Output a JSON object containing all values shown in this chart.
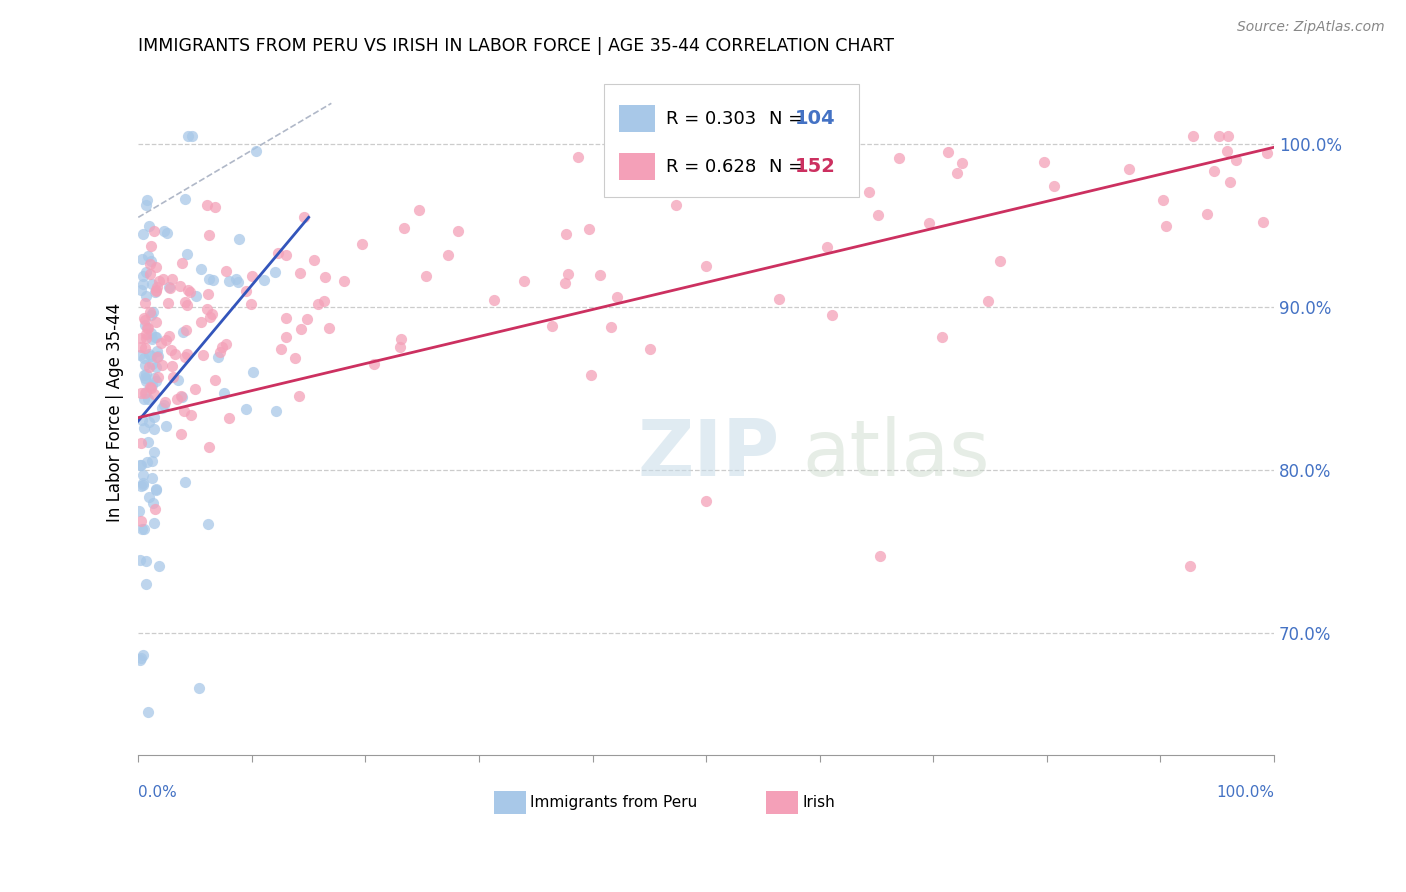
{
  "title": "IMMIGRANTS FROM PERU VS IRISH IN LABOR FORCE | AGE 35-44 CORRELATION CHART",
  "source": "Source: ZipAtlas.com",
  "ylabel": "In Labor Force | Age 35-44",
  "ylabel_tick_vals": [
    0.7,
    0.8,
    0.9,
    1.0
  ],
  "xlim": [
    0.0,
    1.0
  ],
  "ylim": [
    0.625,
    1.045
  ],
  "legend_r_blue": "R = 0.303",
  "legend_n_blue": "N = 104",
  "legend_r_pink": "R = 0.628",
  "legend_n_pink": "N = 152",
  "color_blue": "#a8c8e8",
  "color_pink": "#f4a0b8",
  "color_blue_text": "#4472c4",
  "color_pink_text": "#cc3060",
  "trend_blue": "#3355bb",
  "trend_pink": "#cc3060",
  "n_blue": 104,
  "n_pink": 152,
  "blue_trend_x": [
    0.0,
    0.15
  ],
  "blue_trend_y": [
    0.83,
    0.955
  ],
  "pink_trend_x": [
    0.0,
    1.0
  ],
  "pink_trend_y": [
    0.832,
    0.998
  ],
  "ref_line_x": [
    0.0,
    0.17
  ],
  "ref_line_y": [
    0.955,
    1.025
  ]
}
